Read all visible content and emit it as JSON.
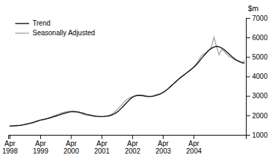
{
  "chart_data": {
    "type": "line",
    "y_label": "$m",
    "categories": [
      "Apr\n1998",
      null,
      null,
      null,
      null,
      null,
      null,
      null,
      null,
      null,
      null,
      null,
      "Apr\n1999",
      null,
      null,
      null,
      null,
      null,
      null,
      null,
      null,
      null,
      null,
      null,
      "Apr\n2000",
      null,
      null,
      null,
      null,
      null,
      null,
      null,
      null,
      null,
      null,
      null,
      "Apr\n2001",
      null,
      null,
      null,
      null,
      null,
      null,
      null,
      null,
      null,
      null,
      null,
      "Apr\n2002",
      null,
      null,
      null,
      null,
      null,
      null,
      null,
      null,
      null,
      null,
      null,
      "Apr\n2003",
      null,
      null,
      null,
      null,
      null,
      null,
      null,
      null,
      null,
      null,
      null,
      "Apr\n2004",
      null,
      null,
      null,
      null,
      null,
      null,
      null,
      null,
      null,
      null,
      null,
      null,
      null,
      null,
      null,
      null,
      null,
      null,
      null,
      null
    ],
    "series": [
      {
        "name": "Trend",
        "color": "#1a1a1a",
        "values": [
          1450,
          1460,
          1470,
          1480,
          1490,
          1510,
          1530,
          1560,
          1590,
          1620,
          1660,
          1710,
          1750,
          1780,
          1810,
          1840,
          1880,
          1920,
          1960,
          2000,
          2050,
          2090,
          2130,
          2160,
          2190,
          2200,
          2190,
          2170,
          2140,
          2100,
          2060,
          2030,
          2000,
          1975,
          1960,
          1950,
          1945,
          1950,
          1960,
          1980,
          2020,
          2080,
          2160,
          2270,
          2400,
          2540,
          2680,
          2810,
          2920,
          2990,
          3020,
          3030,
          3020,
          3000,
          2980,
          2970,
          2980,
          3010,
          3050,
          3100,
          3170,
          3260,
          3360,
          3480,
          3600,
          3720,
          3840,
          3950,
          4050,
          4150,
          4250,
          4350,
          4460,
          4590,
          4740,
          4900,
          5060,
          5210,
          5340,
          5440,
          5510,
          5540,
          5520,
          5460,
          5370,
          5260,
          5140,
          5020,
          4910,
          4820,
          4750,
          4700,
          4680
        ]
      },
      {
        "name": "Seasonally Adjusted",
        "color": "#aaaaaa",
        "values": [
          1440,
          1445,
          1455,
          1465,
          1480,
          1510,
          1540,
          1580,
          1610,
          1650,
          1690,
          1730,
          1760,
          1790,
          1820,
          1860,
          1910,
          1960,
          2010,
          2060,
          2110,
          2150,
          2190,
          2200,
          2200,
          2190,
          2170,
          2140,
          2090,
          2050,
          2010,
          2000,
          1980,
          1950,
          1940,
          1930,
          1940,
          1950,
          1970,
          2000,
          2060,
          2150,
          2290,
          2420,
          2550,
          2720,
          2820,
          2910,
          2950,
          3010,
          3030,
          3040,
          3000,
          2970,
          2950,
          2960,
          3000,
          3050,
          3090,
          3110,
          3180,
          3270,
          3370,
          3490,
          3610,
          3720,
          3840,
          3950,
          4050,
          4150,
          4250,
          4360,
          4480,
          4630,
          4840,
          5050,
          5150,
          5230,
          5360,
          5520,
          6010,
          5530,
          5110,
          5390,
          5280,
          5150,
          5010,
          4970,
          4860,
          4820,
          4800,
          4700,
          4820
        ]
      }
    ],
    "ylim": [
      1000,
      7000
    ],
    "yticks": [
      1000,
      2000,
      3000,
      4000,
      5000,
      6000,
      7000
    ],
    "grid": false,
    "legend": "upper left"
  }
}
